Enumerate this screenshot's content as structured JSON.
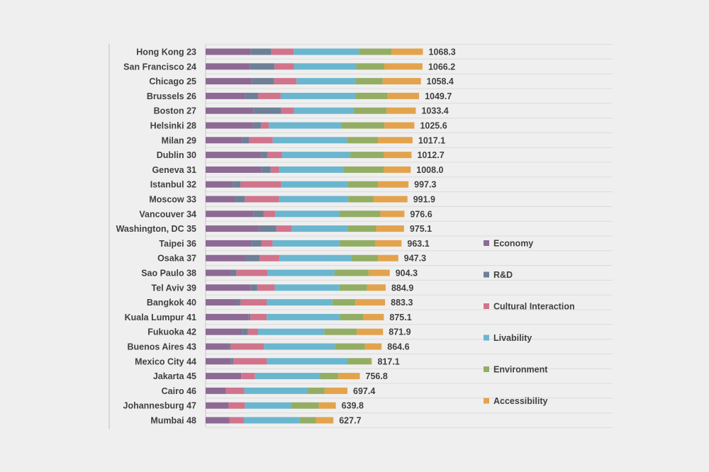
{
  "chart_data": {
    "type": "bar",
    "orientation": "horizontal",
    "stacked": true,
    "categories": [
      "Hong Kong 23",
      "San Francisco 24",
      "Chicago 25",
      "Brussels 26",
      "Boston 27",
      "Helsinki 28",
      "Milan 29",
      "Dublin 30",
      "Geneva 31",
      "Istanbul 32",
      "Moscow 33",
      "Vancouver 34",
      "Washington, DC 35",
      "Taipei 36",
      "Osaka 37",
      "Sao Paulo 38",
      "Tel Aviv 39",
      "Bangkok 40",
      "Kuala Lumpur 41",
      "Fukuoka 42",
      "Buenos Aires 43",
      "Mexico City 44",
      "Jakarta 45",
      "Cairo 46",
      "Johannesburg 47",
      "Mumbai 48"
    ],
    "totals": [
      "1068.3",
      "1066.2",
      "1058.4",
      "1049.7",
      "1033.4",
      "1025.6",
      "1017.1",
      "1012.7",
      "1008.0",
      "997.3",
      "991.9",
      "976.6",
      "975.1",
      "963.1",
      "947.3",
      "904.3",
      "884.9",
      "883.3",
      "875.1",
      "871.9",
      "864.6",
      "817.1",
      "756.8",
      "697.4",
      "639.8",
      "627.7"
    ],
    "series": [
      {
        "name": "Economy",
        "color": "#8d6a94",
        "values": [
          222,
          219,
          229,
          193,
          236,
          233,
          179,
          272,
          273,
          132,
          143,
          236,
          261,
          226,
          197,
          127,
          222,
          155,
          210,
          178,
          108,
          123,
          175,
          100,
          113,
          118
        ]
      },
      {
        "name": "R&D",
        "color": "#6e8096",
        "values": [
          100,
          120,
          108,
          65,
          136,
          40,
          36,
          31,
          47,
          40,
          50,
          48,
          87,
          49,
          69,
          24,
          32,
          17,
          10,
          30,
          14,
          14,
          0,
          0,
          0,
          0
        ]
      },
      {
        "name": "Cultural Interaction",
        "color": "#d0748c",
        "values": [
          111,
          96,
          110,
          111,
          63,
          38,
          115,
          73,
          41,
          200,
          168,
          58,
          75,
          54,
          97,
          152,
          86,
          129,
          80,
          50,
          165,
          165,
          68,
          90,
          80,
          70
        ]
      },
      {
        "name": "Livability",
        "color": "#6bb6cf",
        "values": [
          320,
          305,
          288,
          368,
          291,
          358,
          364,
          335,
          317,
          327,
          340,
          315,
          275,
          330,
          352,
          330,
          318,
          322,
          360,
          325,
          348,
          395,
          320,
          312,
          226,
          275
        ]
      },
      {
        "name": "Environment",
        "color": "#93ad64",
        "values": [
          160,
          138,
          135,
          155,
          163,
          210,
          153,
          165,
          199,
          148,
          123,
          202,
          140,
          176,
          132,
          168,
          136,
          113,
          116,
          159,
          148,
          116,
          89,
          83,
          137,
          80
        ]
      },
      {
        "name": "Accessibility",
        "color": "#e3a34c",
        "values": [
          155,
          188,
          188,
          157,
          144,
          147,
          170,
          136,
          131,
          150,
          168,
          118,
          137,
          128,
          100,
          104,
          91,
          146,
          100,
          130,
          82,
          4,
          106,
          112,
          84,
          85
        ]
      }
    ],
    "xlim": [
      0,
      2000
    ],
    "grid": true,
    "legend": "right"
  }
}
